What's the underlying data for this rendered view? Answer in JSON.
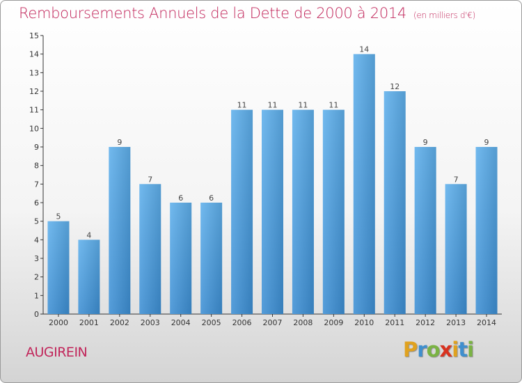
{
  "chart_data": {
    "type": "bar",
    "title": "Remboursements Annuels de la Dette de 2000 à 2014",
    "unit": "(en milliers d'€)",
    "categories": [
      "2000",
      "2001",
      "2002",
      "2003",
      "2004",
      "2005",
      "2006",
      "2007",
      "2008",
      "2009",
      "2010",
      "2011",
      "2012",
      "2013",
      "2014"
    ],
    "values": [
      5,
      4,
      9,
      7,
      6,
      6,
      11,
      11,
      11,
      11,
      14,
      12,
      9,
      7,
      9
    ],
    "ylim": [
      0,
      15
    ],
    "yticks": [
      0,
      1,
      2,
      3,
      4,
      5,
      6,
      7,
      8,
      9,
      10,
      11,
      12,
      13,
      14,
      15
    ],
    "grid": false,
    "bar_color": "#3d8fd4"
  },
  "commune": "AUGIREIN",
  "brand": {
    "letters": [
      "P",
      "r",
      "o",
      "x",
      "i",
      "t",
      "i"
    ]
  }
}
